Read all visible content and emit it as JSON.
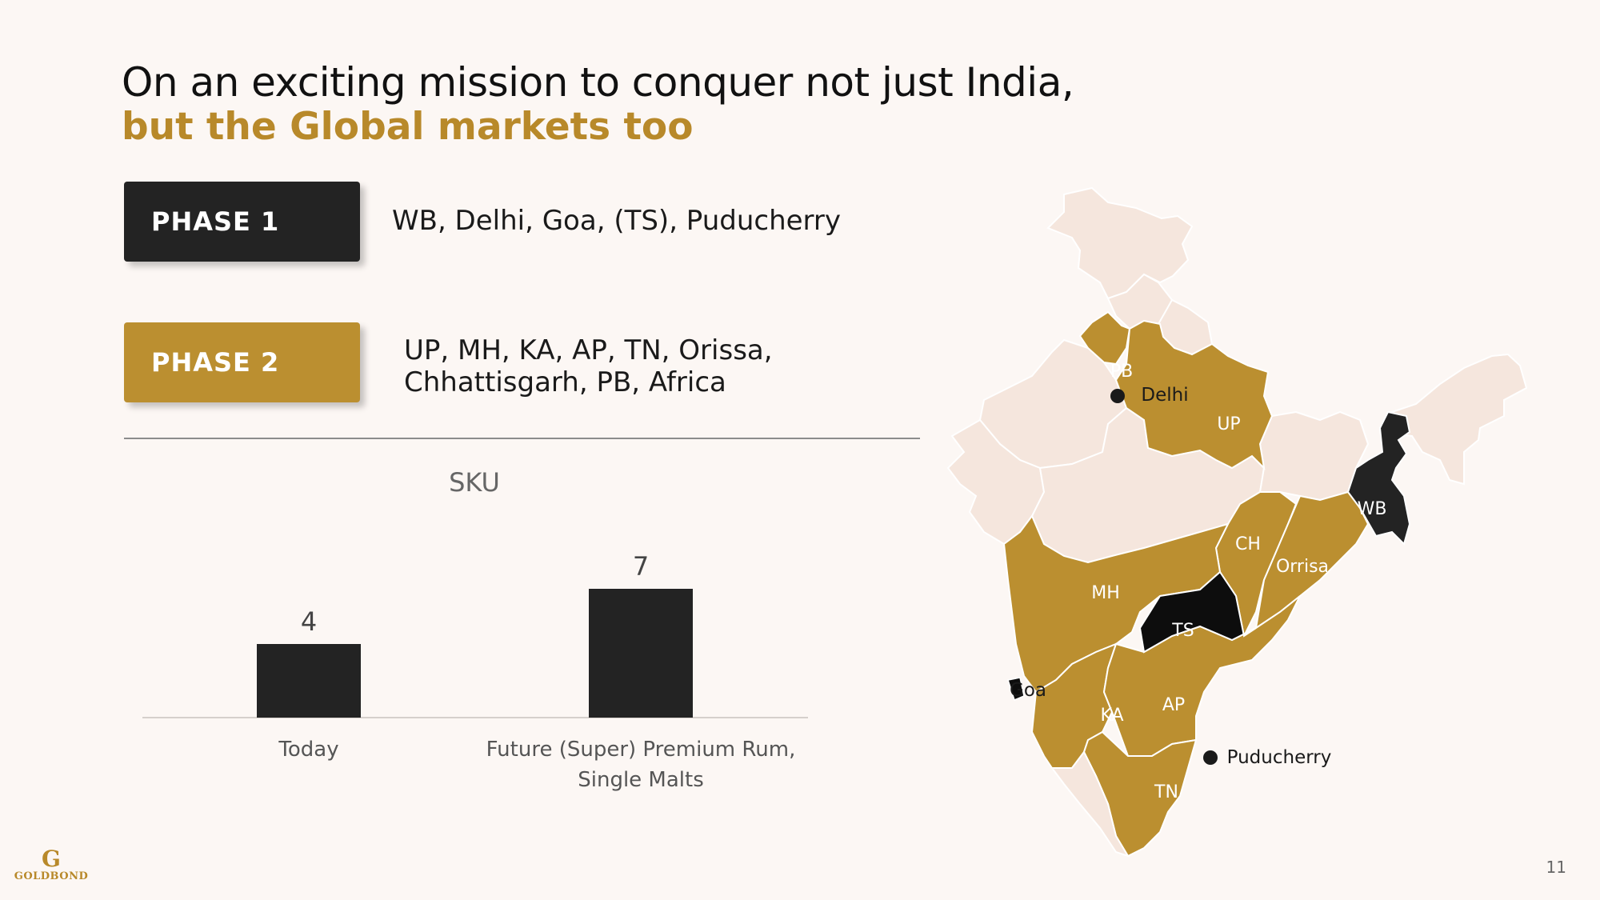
{
  "header": {
    "title_line1": "On an exciting mission to conquer not just India,",
    "title_line2": "but the Global markets too"
  },
  "phases": [
    {
      "label": "PHASE 1",
      "markets_lines": [
        "WB, Delhi, Goa, (TS), Puducherry"
      ]
    },
    {
      "label": "PHASE 2",
      "markets_lines": [
        "UP, MH, KA, AP, TN, Orissa,",
        "Chhattisgarh, PB, Africa"
      ]
    }
  ],
  "chart_data": {
    "type": "bar",
    "title": "SKU",
    "categories": [
      [
        "Today"
      ],
      [
        "Future (Super) Premium Rum,",
        "Single Malts"
      ]
    ],
    "values": [
      4,
      7
    ],
    "xlabel": "",
    "ylabel": "",
    "ylim": [
      0,
      8
    ],
    "grid": false,
    "bar_color": "#232323"
  },
  "map": {
    "colors": {
      "phase1": "#232323",
      "ts": "#0d0d0d",
      "phase2": "#bb8f30",
      "other": "#f5e6dd",
      "border": "#ffffff"
    },
    "state_labels": [
      "PB",
      "UP",
      "WB",
      "CH",
      "Orrisa",
      "MH",
      "TS",
      "AP",
      "KA",
      "TN"
    ],
    "city_labels": [
      "Delhi",
      "Goa",
      "Puducherry"
    ]
  },
  "footer": {
    "logo_mark": "G",
    "logo_text": "GOLDBOND",
    "page_number": "11"
  }
}
